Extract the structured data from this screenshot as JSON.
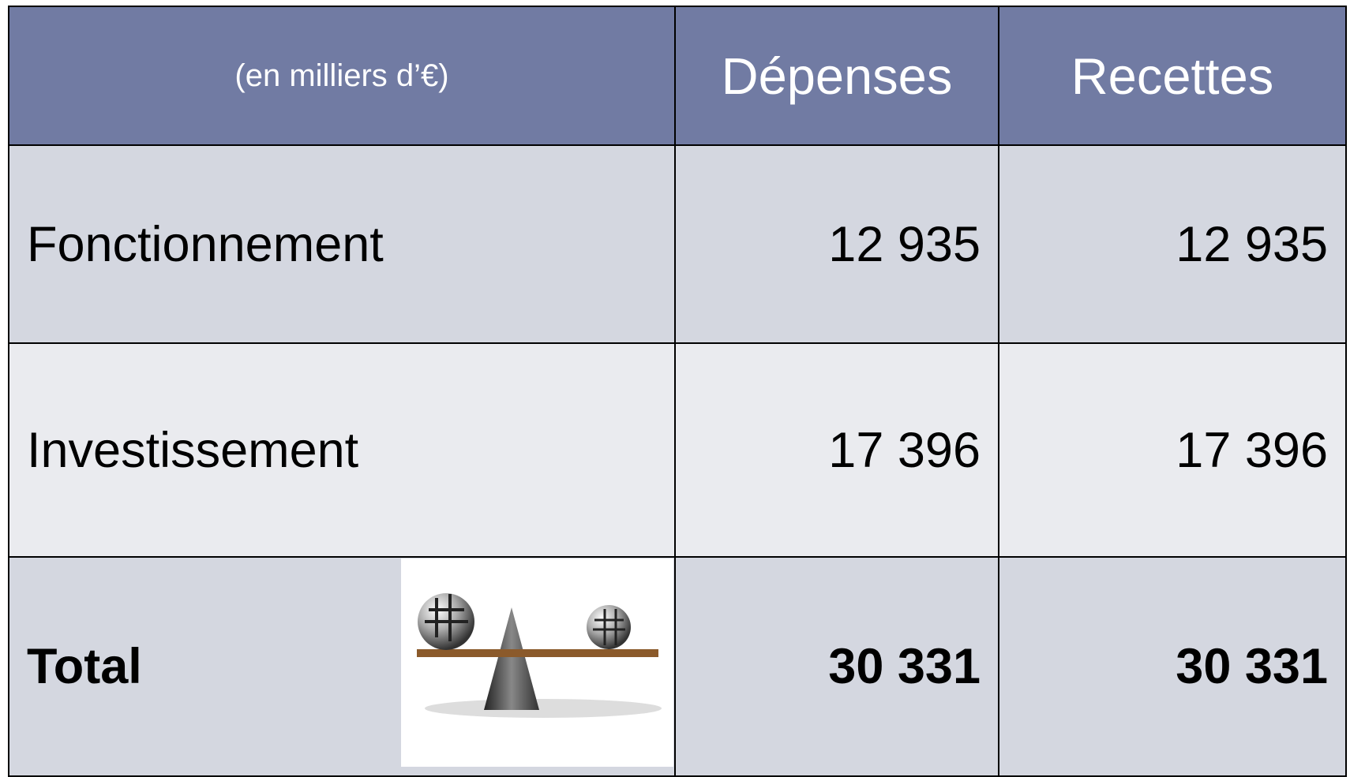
{
  "table": {
    "header": [
      "(en milliers d’€)",
      "Dépenses",
      "Recettes"
    ],
    "rows": [
      [
        "Fonctionnement",
        "12 935",
        "12 935"
      ],
      [
        "Investissement",
        "17 396",
        "17 396"
      ],
      [
        "Total",
        "30 331",
        "30 331"
      ]
    ]
  }
}
